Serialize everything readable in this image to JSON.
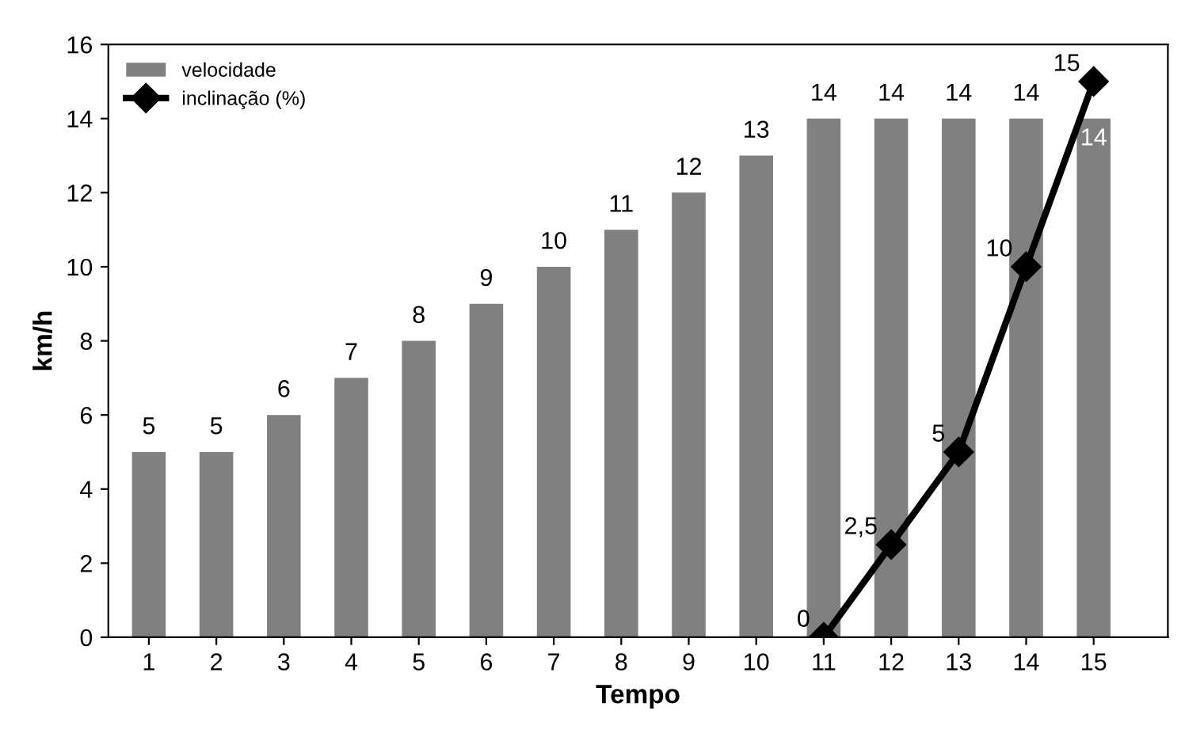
{
  "chart_data": {
    "type": "bar",
    "xlabel": "Tempo",
    "ylabel": "km/h",
    "categories": [
      "1",
      "2",
      "3",
      "4",
      "5",
      "6",
      "7",
      "8",
      "9",
      "10",
      "11",
      "12",
      "13",
      "14",
      "15"
    ],
    "series": [
      {
        "name": "velocidade",
        "color": "#808080",
        "values": [
          5,
          5,
          6,
          7,
          8,
          9,
          10,
          11,
          12,
          13,
          14,
          14,
          14,
          14,
          14
        ],
        "value_labels": [
          "5",
          "5",
          "6",
          "7",
          "8",
          "9",
          "10",
          "11",
          "12",
          "13",
          "14",
          "14",
          "14",
          "14",
          "14"
        ]
      },
      {
        "name": "inclinação (%)",
        "type": "line",
        "color": "#000000",
        "marker": "diamond",
        "line_style": "solid",
        "values": [
          null,
          null,
          null,
          null,
          null,
          null,
          null,
          null,
          null,
          null,
          0,
          2.5,
          5,
          10,
          15
        ],
        "value_labels": [
          null,
          null,
          null,
          null,
          null,
          null,
          null,
          null,
          null,
          null,
          "0",
          "2,5",
          "5",
          "10",
          "15"
        ]
      }
    ],
    "ylim": [
      0,
      16
    ],
    "yticks": [
      0,
      2,
      4,
      6,
      8,
      10,
      12,
      14,
      16
    ],
    "grid": false,
    "legend": "top left"
  }
}
